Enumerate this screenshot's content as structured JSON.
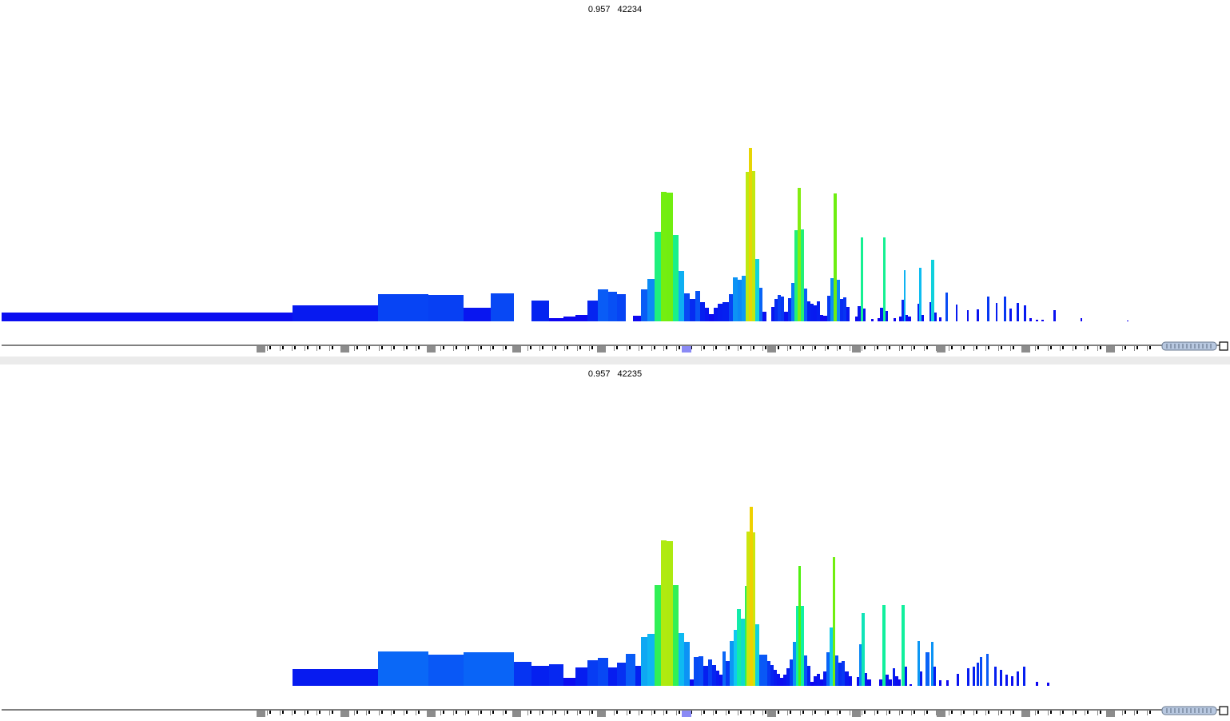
{
  "chart_data": [
    {
      "type": "bar",
      "title_value": "0.957",
      "title_id": "42234",
      "gradient_note": "bar colour encodes height: blue (low) -> cyan -> green -> yellow (high)",
      "bars": [
        [
          2,
          366,
          11
        ],
        [
          366,
          473,
          20
        ],
        [
          473,
          536,
          34
        ],
        [
          536,
          580,
          33
        ],
        [
          580,
          614,
          17
        ],
        [
          614,
          643,
          35
        ],
        [
          665,
          687,
          26
        ],
        [
          687,
          705,
          4
        ],
        [
          705,
          720,
          6
        ],
        [
          720,
          735,
          8
        ],
        [
          735,
          748,
          26
        ],
        [
          748,
          761,
          40
        ],
        [
          761,
          772,
          37
        ],
        [
          772,
          783,
          34
        ],
        [
          792,
          802,
          7
        ],
        [
          802,
          810,
          40
        ],
        [
          810,
          819,
          53
        ],
        [
          819,
          827,
          112
        ],
        [
          827,
          834,
          162
        ],
        [
          834,
          842,
          161
        ],
        [
          842,
          849,
          108
        ],
        [
          849,
          856,
          63
        ],
        [
          856,
          863,
          35
        ],
        [
          863,
          870,
          28
        ],
        [
          870,
          876,
          38
        ],
        [
          876,
          882,
          24
        ],
        [
          882,
          887,
          17
        ],
        [
          887,
          893,
          9
        ],
        [
          893,
          898,
          17
        ],
        [
          898,
          904,
          22
        ],
        [
          904,
          912,
          24
        ],
        [
          912,
          917,
          34
        ],
        [
          917,
          923,
          55
        ],
        [
          923,
          928,
          52
        ],
        [
          928,
          933,
          57
        ],
        [
          933,
          937,
          187
        ],
        [
          937,
          941,
          217
        ],
        [
          941,
          945,
          188
        ],
        [
          945,
          950,
          78
        ],
        [
          950,
          954,
          42
        ],
        [
          954,
          959,
          12
        ],
        [
          965,
          969,
          18
        ],
        [
          969,
          973,
          28
        ],
        [
          973,
          977,
          33
        ],
        [
          977,
          981,
          31
        ],
        [
          981,
          986,
          12
        ],
        [
          986,
          990,
          29
        ],
        [
          990,
          994,
          48
        ],
        [
          994,
          998,
          114
        ],
        [
          998,
          1002,
          167
        ],
        [
          1002,
          1006,
          115
        ],
        [
          1006,
          1010,
          41
        ],
        [
          1010,
          1014,
          25
        ],
        [
          1014,
          1018,
          22
        ],
        [
          1018,
          1022,
          20
        ],
        [
          1022,
          1026,
          25
        ],
        [
          1026,
          1030,
          8
        ],
        [
          1030,
          1035,
          7
        ],
        [
          1035,
          1039,
          32
        ],
        [
          1039,
          1043,
          54
        ],
        [
          1043,
          1047,
          160
        ],
        [
          1047,
          1051,
          52
        ],
        [
          1051,
          1055,
          28
        ],
        [
          1055,
          1059,
          30
        ],
        [
          1059,
          1063,
          18
        ],
        [
          1070,
          1073,
          6
        ],
        [
          1073,
          1077,
          19
        ],
        [
          1077,
          1080,
          105
        ],
        [
          1080,
          1083,
          16
        ],
        [
          1090,
          1093,
          3
        ],
        [
          1098,
          1101,
          4
        ],
        [
          1101,
          1105,
          17
        ],
        [
          1105,
          1108,
          105
        ],
        [
          1108,
          1111,
          13
        ],
        [
          1118,
          1121,
          4
        ],
        [
          1125,
          1128,
          6
        ],
        [
          1128,
          1131,
          27
        ],
        [
          1131,
          1133,
          64
        ],
        [
          1133,
          1136,
          8
        ],
        [
          1136,
          1140,
          6
        ],
        [
          1148,
          1150,
          22
        ],
        [
          1150,
          1153,
          67
        ],
        [
          1153,
          1156,
          8
        ],
        [
          1163,
          1165,
          24
        ],
        [
          1165,
          1169,
          77
        ],
        [
          1169,
          1172,
          11
        ],
        [
          1175,
          1178,
          5
        ],
        [
          1183,
          1186,
          36
        ],
        [
          1196,
          1198,
          21
        ],
        [
          1210,
          1212,
          14
        ],
        [
          1222,
          1225,
          15
        ],
        [
          1235,
          1238,
          31
        ],
        [
          1246,
          1248,
          23
        ],
        [
          1256,
          1259,
          31
        ],
        [
          1263,
          1266,
          16
        ],
        [
          1272,
          1275,
          23
        ],
        [
          1281,
          1284,
          20
        ],
        [
          1288,
          1291,
          4
        ],
        [
          1296,
          1299,
          2
        ],
        [
          1303,
          1306,
          2
        ],
        [
          1318,
          1321,
          14
        ],
        [
          1352,
          1354,
          4
        ],
        [
          1410,
          1412,
          1
        ]
      ]
    },
    {
      "type": "bar",
      "title_value": "0.957",
      "title_id": "42235",
      "gradient_note": "bar colour encodes height: blue (low) -> cyan -> green -> yellow (high)",
      "bars": [
        [
          366,
          473,
          21
        ],
        [
          473,
          536,
          43
        ],
        [
          536,
          580,
          39
        ],
        [
          580,
          614,
          42
        ],
        [
          614,
          643,
          42
        ],
        [
          643,
          665,
          30
        ],
        [
          665,
          687,
          25
        ],
        [
          687,
          705,
          27
        ],
        [
          705,
          720,
          10
        ],
        [
          720,
          735,
          23
        ],
        [
          735,
          748,
          32
        ],
        [
          748,
          761,
          35
        ],
        [
          761,
          772,
          23
        ],
        [
          772,
          783,
          29
        ],
        [
          783,
          795,
          40
        ],
        [
          795,
          802,
          25
        ],
        [
          802,
          810,
          61
        ],
        [
          810,
          819,
          65
        ],
        [
          819,
          827,
          126
        ],
        [
          827,
          834,
          182
        ],
        [
          834,
          842,
          181
        ],
        [
          842,
          849,
          126
        ],
        [
          849,
          856,
          66
        ],
        [
          856,
          863,
          55
        ],
        [
          863,
          868,
          8
        ],
        [
          868,
          874,
          36
        ],
        [
          874,
          880,
          37
        ],
        [
          880,
          886,
          25
        ],
        [
          886,
          891,
          33
        ],
        [
          891,
          896,
          26
        ],
        [
          896,
          900,
          19
        ],
        [
          900,
          904,
          14
        ],
        [
          904,
          908,
          43
        ],
        [
          908,
          913,
          31
        ],
        [
          913,
          918,
          56
        ],
        [
          918,
          922,
          70
        ],
        [
          922,
          927,
          96
        ],
        [
          927,
          932,
          84
        ],
        [
          932,
          934,
          125
        ],
        [
          934,
          938,
          193
        ],
        [
          938,
          942,
          224
        ],
        [
          942,
          945,
          192
        ],
        [
          945,
          950,
          77
        ],
        [
          950,
          955,
          39
        ],
        [
          955,
          960,
          39
        ],
        [
          960,
          964,
          31
        ],
        [
          964,
          968,
          26
        ],
        [
          968,
          972,
          20
        ],
        [
          972,
          976,
          15
        ],
        [
          976,
          980,
          10
        ],
        [
          980,
          984,
          14
        ],
        [
          984,
          988,
          22
        ],
        [
          988,
          992,
          33
        ],
        [
          992,
          996,
          55
        ],
        [
          996,
          999,
          100
        ],
        [
          999,
          1002,
          150
        ],
        [
          1002,
          1006,
          100
        ],
        [
          1006,
          1010,
          38
        ],
        [
          1010,
          1014,
          25
        ],
        [
          1014,
          1018,
          5
        ],
        [
          1018,
          1022,
          12
        ],
        [
          1022,
          1026,
          15
        ],
        [
          1026,
          1030,
          8
        ],
        [
          1030,
          1034,
          18
        ],
        [
          1034,
          1038,
          42
        ],
        [
          1038,
          1042,
          73
        ],
        [
          1042,
          1045,
          161
        ],
        [
          1045,
          1049,
          38
        ],
        [
          1049,
          1053,
          29
        ],
        [
          1053,
          1057,
          31
        ],
        [
          1057,
          1062,
          18
        ],
        [
          1062,
          1066,
          12
        ],
        [
          1072,
          1075,
          11
        ],
        [
          1075,
          1078,
          52
        ],
        [
          1078,
          1082,
          91
        ],
        [
          1082,
          1085,
          16
        ],
        [
          1085,
          1090,
          8
        ],
        [
          1100,
          1104,
          8
        ],
        [
          1104,
          1108,
          101
        ],
        [
          1108,
          1112,
          14
        ],
        [
          1112,
          1116,
          8
        ],
        [
          1117,
          1120,
          22
        ],
        [
          1120,
          1124,
          12
        ],
        [
          1124,
          1127,
          8
        ],
        [
          1128,
          1132,
          101
        ],
        [
          1132,
          1135,
          24
        ],
        [
          1138,
          1141,
          2
        ],
        [
          1148,
          1151,
          56
        ],
        [
          1151,
          1154,
          18
        ],
        [
          1158,
          1163,
          42
        ],
        [
          1165,
          1168,
          55
        ],
        [
          1168,
          1171,
          24
        ],
        [
          1175,
          1178,
          7
        ],
        [
          1184,
          1187,
          7
        ],
        [
          1197,
          1200,
          15
        ],
        [
          1210,
          1213,
          22
        ],
        [
          1217,
          1220,
          24
        ],
        [
          1222,
          1225,
          29
        ],
        [
          1226,
          1229,
          36
        ],
        [
          1234,
          1237,
          40
        ],
        [
          1244,
          1247,
          24
        ],
        [
          1251,
          1254,
          20
        ],
        [
          1258,
          1261,
          14
        ],
        [
          1265,
          1268,
          12
        ],
        [
          1272,
          1275,
          18
        ],
        [
          1280,
          1283,
          24
        ],
        [
          1296,
          1299,
          5
        ],
        [
          1310,
          1313,
          4
        ]
      ]
    }
  ],
  "ruler": {
    "grey_markers": [
      327,
      432,
      540,
      647,
      753,
      966,
      1072,
      1178,
      1284,
      1390
    ],
    "highlight_marker": 859,
    "tick_start": 337,
    "tick_step": 15.5,
    "tick_end": 1452
  }
}
